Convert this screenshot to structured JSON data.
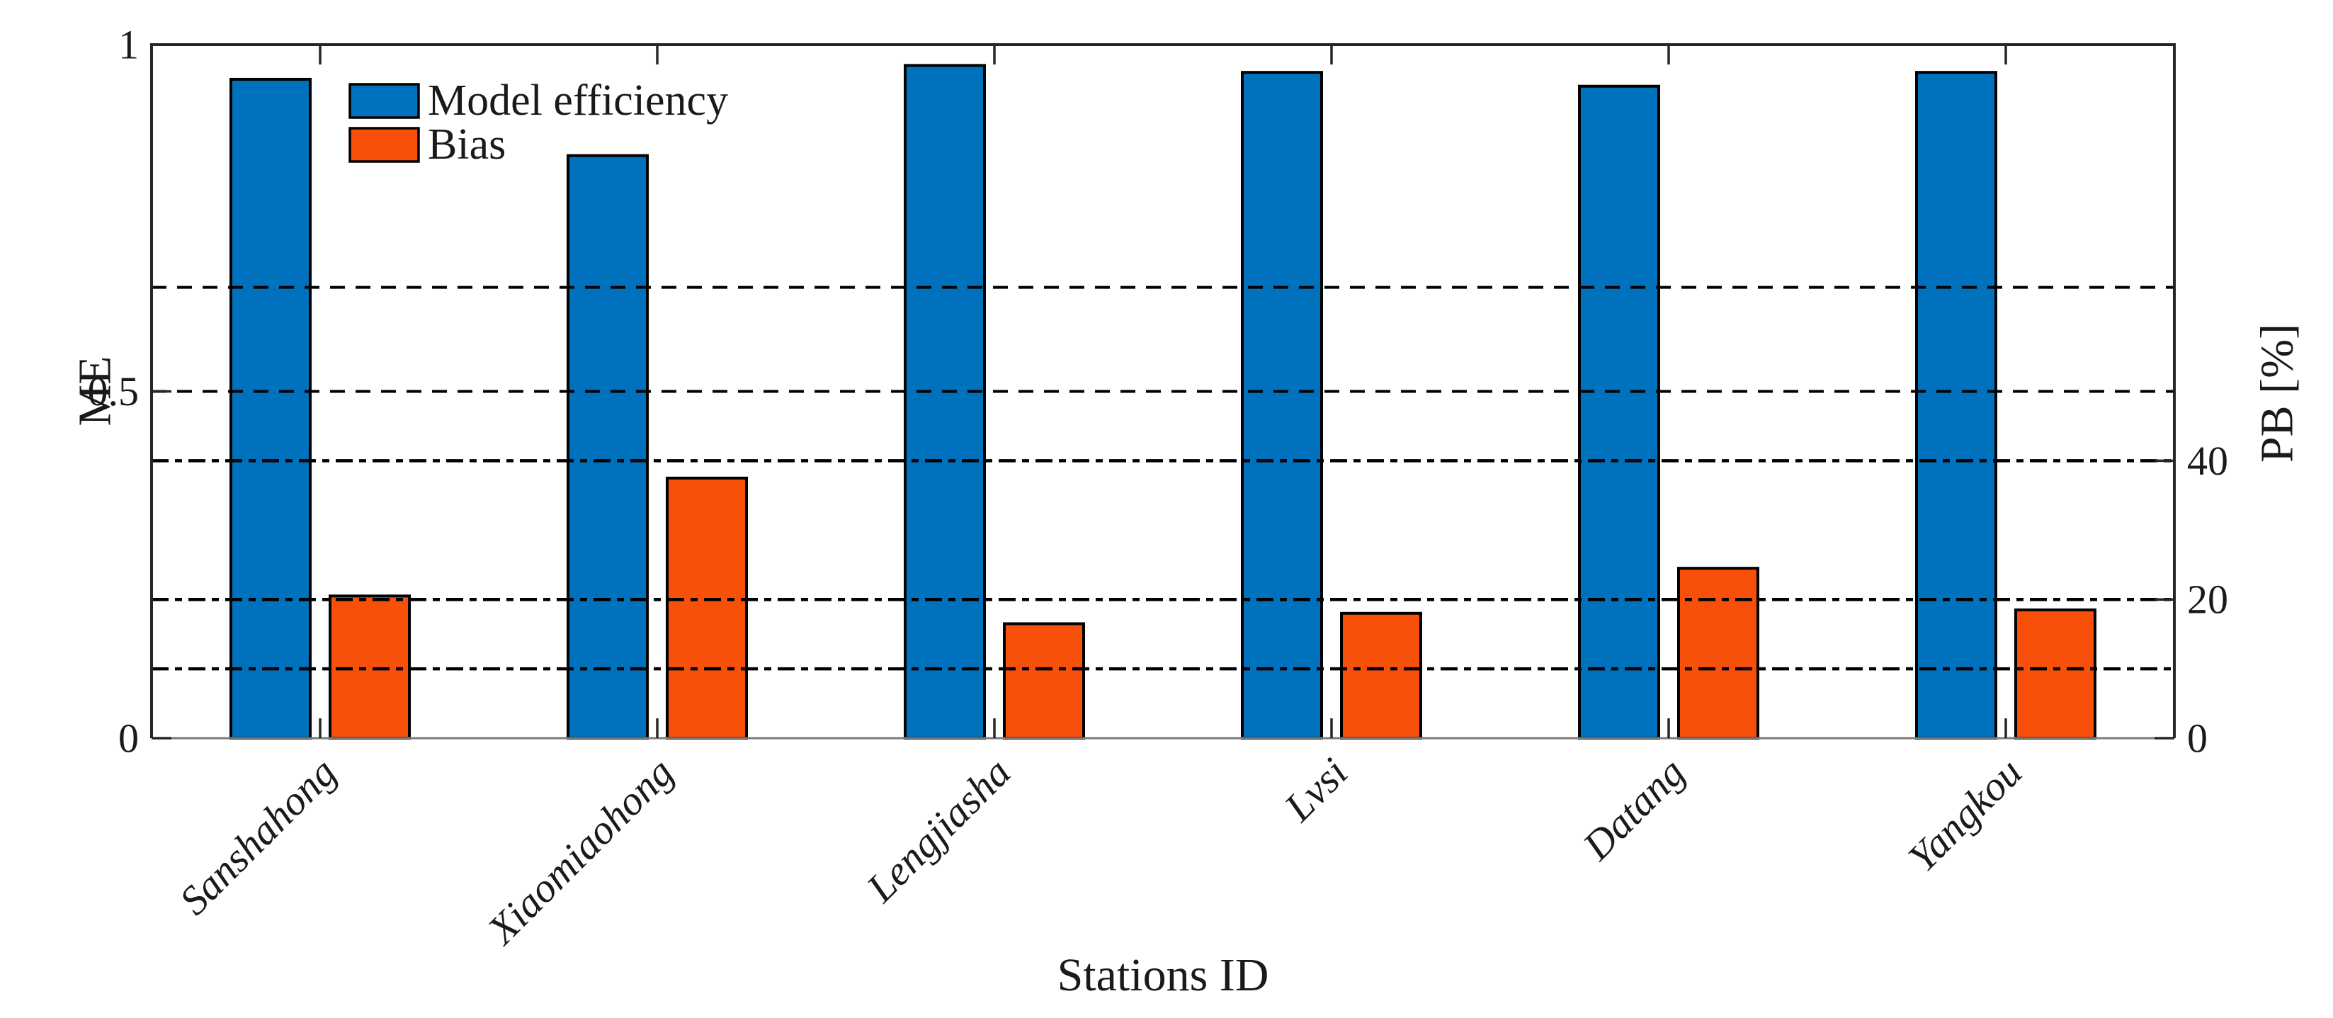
{
  "chart_data": {
    "type": "bar",
    "title": "",
    "xlabel": "Stations ID",
    "categories": [
      "Sanshahong",
      "Xiaomiaohong",
      "Lengjiasha",
      "Lvsi",
      "Datang",
      "Yangkou"
    ],
    "series": [
      {
        "name": "Model efficiency",
        "axis": "left",
        "color": "#0072BD",
        "values": [
          0.95,
          0.84,
          0.97,
          0.96,
          0.94,
          0.96
        ]
      },
      {
        "name": "Bias",
        "axis": "right",
        "color": "#F7500A",
        "values": [
          20.5,
          37.5,
          16.5,
          18,
          24.5,
          18.5
        ]
      }
    ],
    "left_axis": {
      "label": "ME",
      "range": [
        0,
        1
      ],
      "ticks": [
        0,
        0.5,
        1
      ],
      "tick_labels": [
        "0",
        "0.5",
        "1"
      ]
    },
    "right_axis": {
      "label": "PB [%]",
      "range": [
        0,
        100
      ],
      "ticks": [
        0,
        20,
        40
      ],
      "tick_labels": [
        "0",
        "20",
        "40"
      ]
    },
    "reference_lines": [
      {
        "axis": "left",
        "value": 0.65,
        "style": "dashed"
      },
      {
        "axis": "left",
        "value": 0.5,
        "style": "dashed"
      },
      {
        "axis": "right",
        "value": 40,
        "style": "dashdot"
      },
      {
        "axis": "right",
        "value": 20,
        "style": "dashdot"
      },
      {
        "axis": "right",
        "value": 10,
        "style": "dashdot"
      }
    ],
    "legend": {
      "position": "top-left-inside",
      "items": [
        "Model efficiency",
        "Bias"
      ]
    },
    "grid": "horizontal-reference-lines-only",
    "bar_edge_color": "#000000",
    "axis_color": "#262626"
  }
}
